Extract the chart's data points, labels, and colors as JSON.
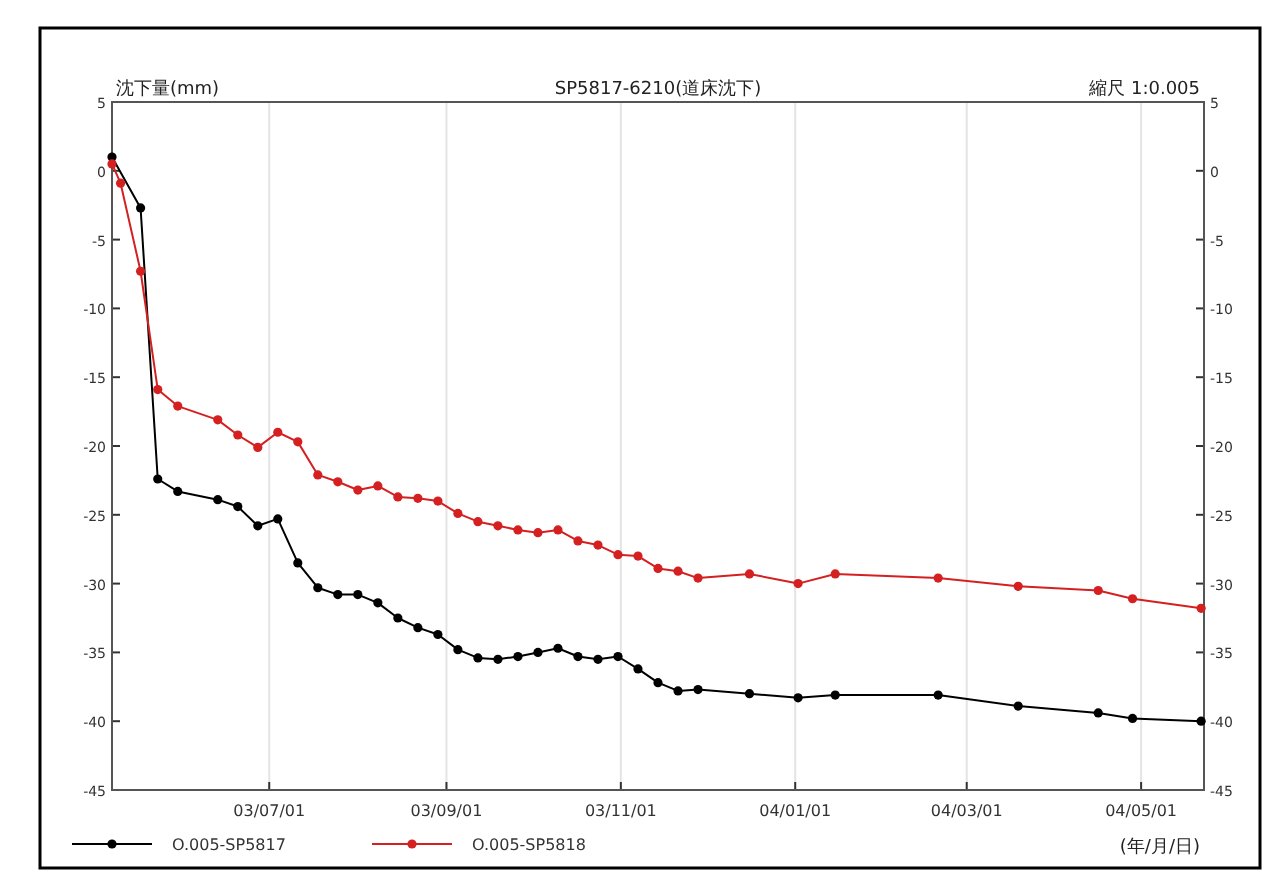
{
  "chart_data": {
    "type": "line",
    "title": "SP5817-6210(道床沈下)",
    "ylabel": "沈下量(mm)",
    "xlabel": "(年/月/日)",
    "annotations": [
      "縮尺 1:0.005"
    ],
    "xlim": [
      "2003-05-07",
      "2004-05-23"
    ],
    "xticks": [
      {
        "value": "2003-07-01",
        "label": "03/07/01"
      },
      {
        "value": "2003-09-01",
        "label": "03/09/01"
      },
      {
        "value": "2003-11-01",
        "label": "03/11/01"
      },
      {
        "value": "2004-01-01",
        "label": "04/01/01"
      },
      {
        "value": "2004-03-01",
        "label": "04/03/01"
      },
      {
        "value": "2004-05-01",
        "label": "04/05/01"
      }
    ],
    "ylim": [
      -45,
      5
    ],
    "yticks": [
      5,
      0,
      -5,
      -10,
      -15,
      -20,
      -25,
      -30,
      -35,
      -40,
      -45
    ],
    "y2lim": [
      -45,
      5
    ],
    "y2ticks": [
      5,
      0,
      -5,
      -10,
      -15,
      -20,
      -25,
      -30,
      -35,
      -40,
      -45
    ],
    "grid": "x",
    "legend": "bottom",
    "marker": "circle",
    "line_style": "solid",
    "series": [
      {
        "name": "O.005-SP5817",
        "color": "#000000",
        "x": [
          "2003-05-07",
          "2003-05-17",
          "2003-05-23",
          "2003-05-30",
          "2003-06-13",
          "2003-06-20",
          "2003-06-27",
          "2003-07-04",
          "2003-07-11",
          "2003-07-18",
          "2003-07-25",
          "2003-08-01",
          "2003-08-08",
          "2003-08-15",
          "2003-08-22",
          "2003-08-29",
          "2003-09-05",
          "2003-09-12",
          "2003-09-19",
          "2003-09-26",
          "2003-10-03",
          "2003-10-10",
          "2003-10-17",
          "2003-10-24",
          "2003-10-31",
          "2003-11-07",
          "2003-11-14",
          "2003-11-21",
          "2003-11-28",
          "2003-12-16",
          "2004-01-02",
          "2004-01-15",
          "2004-02-20",
          "2004-03-19",
          "2004-04-16",
          "2004-04-28",
          "2004-05-22"
        ],
        "values": [
          1.0,
          -2.7,
          -22.4,
          -23.3,
          -23.9,
          -24.4,
          -25.8,
          -25.3,
          -28.5,
          -30.3,
          -30.8,
          -30.8,
          -31.4,
          -32.5,
          -33.2,
          -33.7,
          -34.8,
          -35.4,
          -35.5,
          -35.3,
          -35.0,
          -34.7,
          -35.3,
          -35.5,
          -35.3,
          -36.2,
          -37.2,
          -37.8,
          -37.7,
          -38.0,
          -38.3,
          -38.1,
          -38.1,
          -38.9,
          -39.4,
          -39.8,
          -40.0
        ]
      },
      {
        "name": "O.005-SP5818",
        "color": "#d42020",
        "x": [
          "2003-05-07",
          "2003-05-10",
          "2003-05-17",
          "2003-05-23",
          "2003-05-30",
          "2003-06-13",
          "2003-06-20",
          "2003-06-27",
          "2003-07-04",
          "2003-07-11",
          "2003-07-18",
          "2003-07-25",
          "2003-08-01",
          "2003-08-08",
          "2003-08-15",
          "2003-08-22",
          "2003-08-29",
          "2003-09-05",
          "2003-09-12",
          "2003-09-19",
          "2003-09-26",
          "2003-10-03",
          "2003-10-10",
          "2003-10-17",
          "2003-10-24",
          "2003-10-31",
          "2003-11-07",
          "2003-11-14",
          "2003-11-21",
          "2003-11-28",
          "2003-12-16",
          "2004-01-02",
          "2004-01-15",
          "2004-02-20",
          "2004-03-19",
          "2004-04-16",
          "2004-04-28",
          "2004-05-22"
        ],
        "values": [
          0.5,
          -0.9,
          -7.3,
          -15.9,
          -17.1,
          -18.1,
          -19.2,
          -20.1,
          -19.0,
          -19.7,
          -22.1,
          -22.6,
          -23.2,
          -22.9,
          -23.7,
          -23.8,
          -24.0,
          -24.9,
          -25.5,
          -25.8,
          -26.1,
          -26.3,
          -26.1,
          -26.9,
          -27.2,
          -27.9,
          -28.0,
          -28.9,
          -29.1,
          -29.6,
          -29.3,
          -30.0,
          -29.3,
          -29.6,
          -30.2,
          -30.5,
          -31.1,
          -31.8
        ]
      }
    ]
  }
}
